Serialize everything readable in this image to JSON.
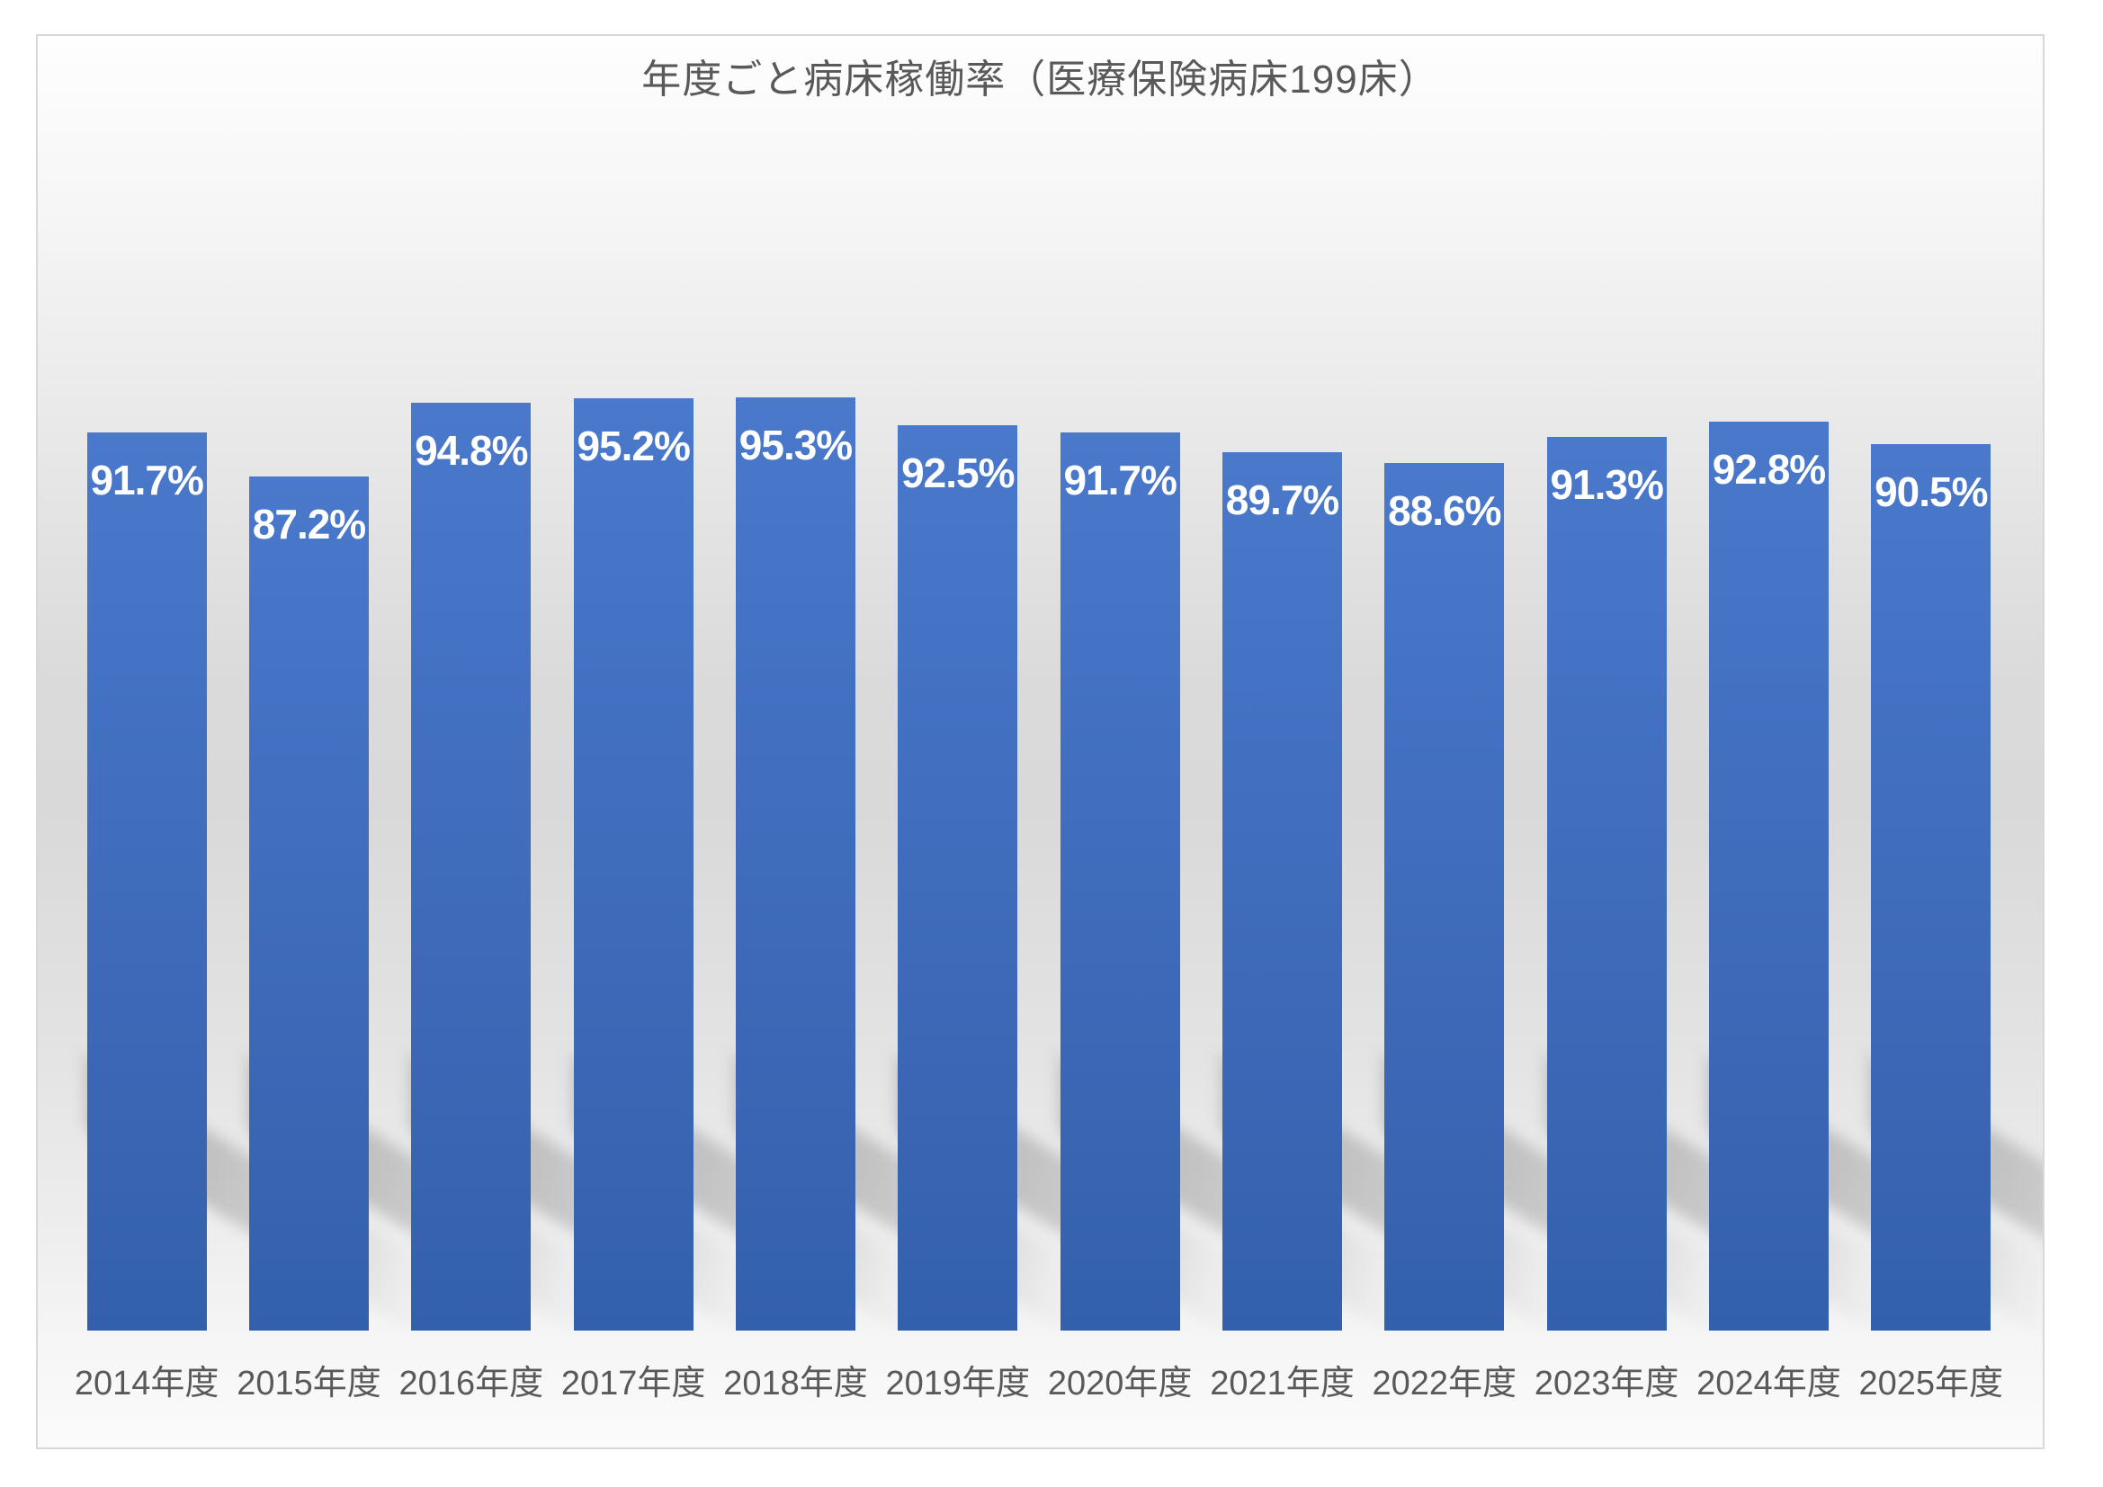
{
  "chart_data": {
    "type": "bar",
    "title": "年度ごと病床稼働率（医療保険病床199床）",
    "categories": [
      "2014年度",
      "2015年度",
      "2016年度",
      "2017年度",
      "2018年度",
      "2019年度",
      "2020年度",
      "2021年度",
      "2022年度",
      "2023年度",
      "2024年度",
      "2025年度"
    ],
    "values": [
      91.7,
      87.2,
      94.8,
      95.2,
      95.3,
      92.5,
      91.7,
      89.7,
      88.6,
      91.3,
      92.8,
      90.5
    ],
    "value_labels": [
      "91.7%",
      "87.2%",
      "94.8%",
      "95.2%",
      "95.3%",
      "92.5%",
      "91.7%",
      "89.7%",
      "88.6%",
      "91.3%",
      "92.8%",
      "90.5%"
    ],
    "xlabel": "",
    "ylabel": "",
    "ylim": [
      0,
      100
    ],
    "grid": false,
    "legend": null,
    "label_position": "inside-end",
    "colors": {
      "bar": "#4472C4",
      "bar_gradient_bottom": "#3360AD",
      "value_label_text": "#FFFFFF",
      "title_text": "#595959",
      "axis_text": "#595959",
      "chart_border": "#D8D8D8",
      "background_mid": "#D9D9D9"
    }
  }
}
